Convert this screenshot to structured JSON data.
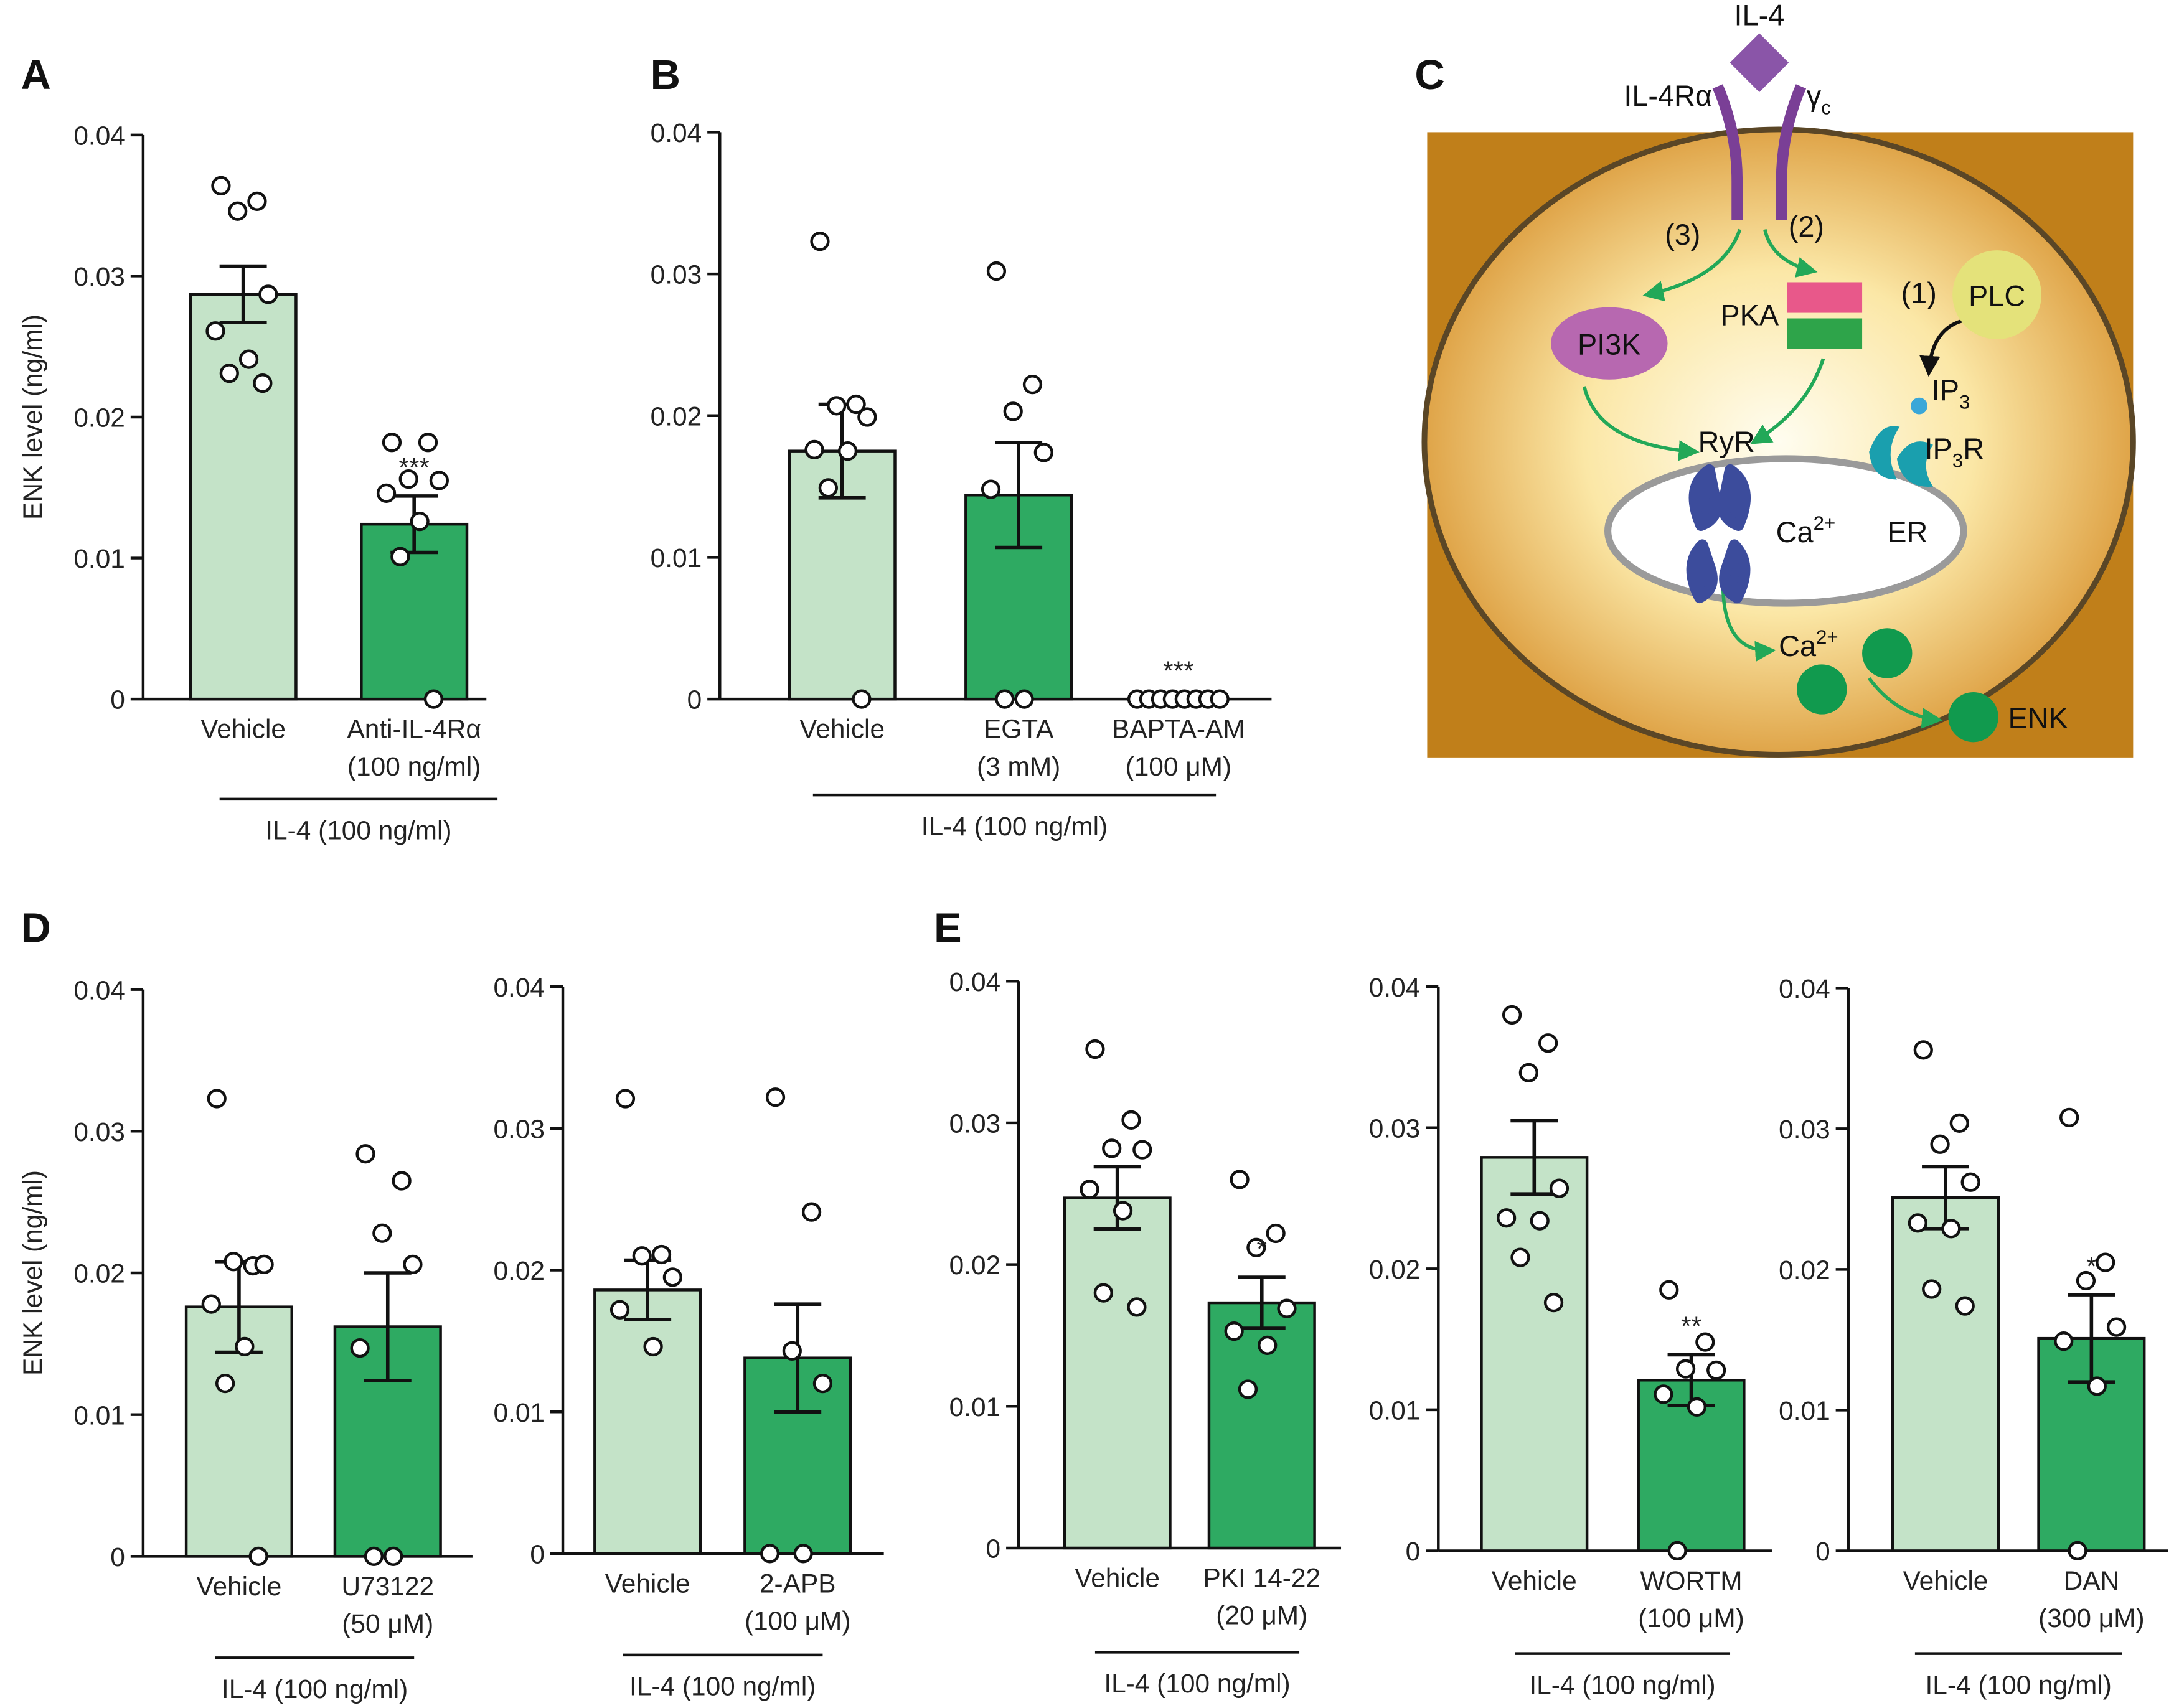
{
  "chart_data": [
    {
      "type": "bar",
      "panel": "A",
      "ylabel": "ENK level (ng/ml)",
      "group_label": "IL-4 (100 ng/ml)",
      "categories": [
        [
          "Vehicle"
        ],
        [
          "Anti-IL-4Rα",
          "(100 ng/ml)"
        ]
      ],
      "values": [
        0.0287,
        0.0124
      ],
      "errors": [
        0.002,
        0.002
      ],
      "significance": [
        null,
        "***"
      ],
      "points": [
        [
          0.0364,
          0.0353,
          0.0346,
          0.0287,
          0.0261,
          0.0241,
          0.0231,
          0.0224
        ],
        [
          0.0182,
          0.0182,
          0.0156,
          0.0155,
          0.0146,
          0.0126,
          0.0101,
          0
        ]
      ],
      "colors": [
        "#c4e3c8",
        "#2eaa62"
      ],
      "ylim": [
        0,
        0.04
      ],
      "yticks": [
        0,
        0.01,
        0.02,
        0.03,
        0.04
      ]
    },
    {
      "type": "bar",
      "panel": "B",
      "group_label": "IL-4 (100 ng/ml)",
      "categories": [
        [
          "Vehicle"
        ],
        [
          "EGTA",
          "(3 mM)"
        ],
        [
          "BAPTA-AM",
          "(100 μM)"
        ]
      ],
      "values": [
        0.0175,
        0.0144,
        0
      ],
      "errors": [
        0.0033,
        0.0037,
        0
      ],
      "significance": [
        null,
        null,
        "***"
      ],
      "points": [
        [
          0.0323,
          0.0208,
          0.0207,
          0.0199,
          0.0176,
          0.0175,
          0.0149,
          0
        ],
        [
          0.0302,
          0.0222,
          0.0203,
          0.0174,
          0.0148,
          0,
          0
        ],
        [
          0,
          0,
          0,
          0,
          0,
          0,
          0,
          0
        ]
      ],
      "colors": [
        "#c4e3c8",
        "#2eaa62",
        "#2eaa62"
      ],
      "ylim": [
        0,
        0.04
      ],
      "yticks": [
        0,
        0.01,
        0.02,
        0.03,
        0.04
      ]
    },
    {
      "type": "bar",
      "panel": "D",
      "ylabel": "ENK level (ng/ml)",
      "group_label": "IL-4 (100 ng/ml)",
      "categories": [
        [
          "Vehicle"
        ],
        [
          "U73122",
          "(50 μM)"
        ]
      ],
      "values": [
        0.0176,
        0.0162
      ],
      "errors": [
        0.0032,
        0.0038
      ],
      "significance": [
        null,
        null
      ],
      "points": [
        [
          0.0323,
          0.0205,
          0.0208,
          0.0206,
          0.0178,
          0.0148,
          0.0122,
          0
        ],
        [
          0.0284,
          0.0265,
          0.0228,
          0.0206,
          0.0147,
          0,
          0
        ]
      ],
      "colors": [
        "#c4e3c8",
        "#2eaa62"
      ],
      "ylim": [
        0,
        0.04
      ],
      "yticks": [
        0,
        0.01,
        0.02,
        0.03,
        0.04
      ]
    },
    {
      "type": "bar",
      "group_label": "IL-4 (100 ng/ml)",
      "categories": [
        [
          "Vehicle"
        ],
        [
          "2-APB",
          "(100 μM)"
        ]
      ],
      "values": [
        0.0186,
        0.0138
      ],
      "errors": [
        0.0021,
        0.0038
      ],
      "significance": [
        null,
        null
      ],
      "points": [
        [
          0.0321,
          0.0211,
          0.021,
          0.0195,
          0.0172,
          0.0146
        ],
        [
          0.0322,
          0.0241,
          0.0143,
          0.012,
          0,
          0
        ]
      ],
      "colors": [
        "#c4e3c8",
        "#2eaa62"
      ],
      "ylim": [
        0,
        0.04
      ],
      "yticks": [
        0,
        0.01,
        0.02,
        0.03,
        0.04
      ]
    },
    {
      "type": "bar",
      "panel": "E",
      "group_label": "IL-4 (100 ng/ml)",
      "categories": [
        [
          "Vehicle"
        ],
        [
          "PKI 14-22",
          "(20 μM)"
        ]
      ],
      "values": [
        0.0247,
        0.0173
      ],
      "errors": [
        0.0022,
        0.0018
      ],
      "significance": [
        null,
        "*"
      ],
      "points": [
        [
          0.0352,
          0.0302,
          0.0282,
          0.0281,
          0.0253,
          0.0238,
          0.018,
          0.017
        ],
        [
          0.026,
          0.0222,
          0.0212,
          0.0169,
          0.0153,
          0.0143,
          0.0112
        ]
      ],
      "colors": [
        "#c4e3c8",
        "#2eaa62"
      ],
      "ylim": [
        0,
        0.04
      ],
      "yticks": [
        0,
        0.01,
        0.02,
        0.03,
        0.04
      ]
    },
    {
      "type": "bar",
      "group_label": "IL-4 (100 ng/ml)",
      "categories": [
        [
          "Vehicle"
        ],
        [
          "WORTM",
          "(100 μM)"
        ]
      ],
      "values": [
        0.0279,
        0.0121
      ],
      "errors": [
        0.0026,
        0.0018
      ],
      "significance": [
        null,
        "**"
      ],
      "points": [
        [
          0.038,
          0.036,
          0.0339,
          0.0257,
          0.0236,
          0.0234,
          0.0208,
          0.0176
        ],
        [
          0.0185,
          0.0148,
          0.0129,
          0.0128,
          0.0111,
          0.0102,
          0
        ]
      ],
      "colors": [
        "#c4e3c8",
        "#2eaa62"
      ],
      "ylim": [
        0,
        0.04
      ],
      "yticks": [
        0,
        0.01,
        0.02,
        0.03,
        0.04
      ]
    },
    {
      "type": "bar",
      "group_label": "IL-4 (100 ng/ml)",
      "categories": [
        [
          "Vehicle"
        ],
        [
          "DAN",
          "(300 μM)"
        ]
      ],
      "values": [
        0.0251,
        0.0151
      ],
      "errors": [
        0.0022,
        0.0031
      ],
      "significance": [
        null,
        "*"
      ],
      "points": [
        [
          0.0356,
          0.0304,
          0.0289,
          0.0262,
          0.0233,
          0.0229,
          0.0186,
          0.0174
        ],
        [
          0.0308,
          0.0205,
          0.0192,
          0.0159,
          0.0149,
          0.0117,
          0
        ]
      ],
      "colors": [
        "#c4e3c8",
        "#2eaa62"
      ],
      "ylim": [
        0,
        0.04
      ],
      "yticks": [
        0,
        0.01,
        0.02,
        0.03,
        0.04
      ]
    }
  ],
  "diagram": {
    "panel": "C",
    "ligand": "IL-4",
    "receptor": "IL-4Rα",
    "gamma": {
      "main": "γ",
      "sub": "c"
    },
    "path3": "(3)",
    "path2": "(2)",
    "path1": "(1)",
    "plc": "PLC",
    "pi3k": "PI3K",
    "pka": "PKA",
    "ip3": {
      "main": "IP",
      "sub": "3"
    },
    "ip3r": {
      "main": "IP",
      "sub": "3",
      "rest": "R"
    },
    "ryr": "RyR",
    "ca_er": {
      "main": "Ca",
      "sup": "2+"
    },
    "er": "ER",
    "ca_cyto": {
      "main": "Ca",
      "sup": "2+"
    },
    "enk": "ENK"
  }
}
